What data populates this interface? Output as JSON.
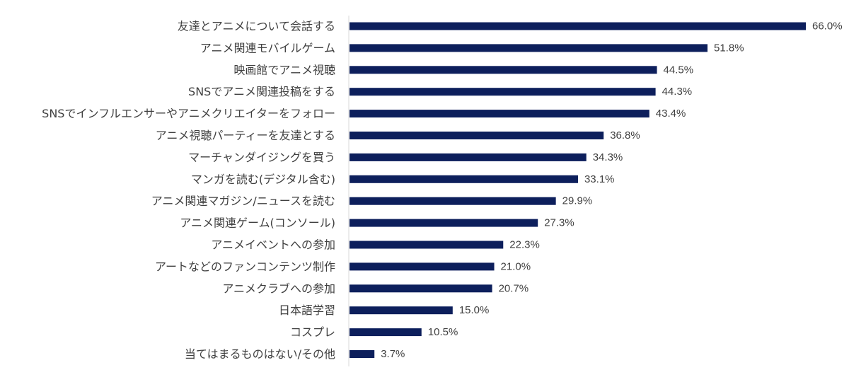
{
  "chart_data": {
    "type": "bar",
    "orientation": "horizontal",
    "categories": [
      "友達とアニメについて会話する",
      "アニメ関連モバイルゲーム",
      "映画館でアニメ視聴",
      "SNSでアニメ関連投稿をする",
      "SNSでインフルエンサーやアニメクリエイターをフォロー",
      "アニメ視聴パーティーを友達とする",
      "マーチャンダイジングを買う",
      "マンガを読む(デジタル含む)",
      "アニメ関連マガジン/ニュースを読む",
      "アニメ関連ゲーム(コンソール)",
      "アニメイベントへの参加",
      "アートなどのファンコンテンツ制作",
      "アニメクラブへの参加",
      "日本語学習",
      "コスプレ",
      "当てはまるものはない/その他"
    ],
    "values": [
      66.0,
      51.8,
      44.5,
      44.3,
      43.4,
      36.8,
      34.3,
      33.1,
      29.9,
      27.3,
      22.3,
      21.0,
      20.7,
      15.0,
      10.5,
      3.7
    ],
    "value_labels": [
      "66.0%",
      "51.8%",
      "44.5%",
      "44.3%",
      "43.4%",
      "36.8%",
      "34.3%",
      "33.1%",
      "29.9%",
      "27.3%",
      "22.3%",
      "21.0%",
      "20.7%",
      "15.0%",
      "10.5%",
      "3.7%"
    ],
    "xlim": [
      0,
      66.0
    ],
    "title": "",
    "xlabel": "",
    "ylabel": "",
    "grid": false,
    "legend": "none",
    "colors": {
      "bar": "#0d1f5c",
      "axis": "#d9d9d9",
      "text": "#404040"
    }
  }
}
